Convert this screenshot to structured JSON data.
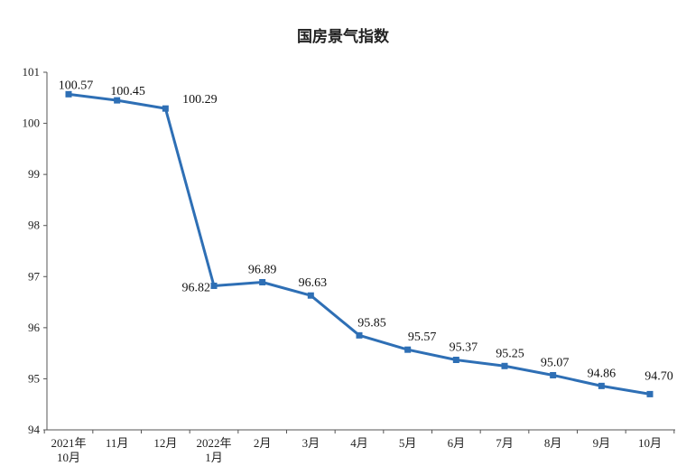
{
  "chart_data": {
    "type": "line",
    "title": "国房景气指数",
    "xlabel": "",
    "ylabel": "",
    "ylim": [
      94,
      101
    ],
    "yticks": [
      "94",
      "95",
      "96",
      "97",
      "98",
      "99",
      "100",
      "101"
    ],
    "categories": [
      "2021年10月",
      "11月",
      "12月",
      "2022年1月",
      "2月",
      "3月",
      "4月",
      "5月",
      "6月",
      "7月",
      "8月",
      "9月",
      "10月"
    ],
    "category_labels": [
      [
        "2021年",
        "10月"
      ],
      [
        "11月"
      ],
      [
        "12月"
      ],
      [
        "2022年",
        "1月"
      ],
      [
        "2月"
      ],
      [
        "3月"
      ],
      [
        "4月"
      ],
      [
        "5月"
      ],
      [
        "6月"
      ],
      [
        "7月"
      ],
      [
        "8月"
      ],
      [
        "9月"
      ],
      [
        "10月"
      ]
    ],
    "series": [
      {
        "values": [
          100.57,
          100.45,
          100.29,
          96.82,
          96.89,
          96.63,
          95.85,
          95.57,
          95.37,
          95.25,
          95.07,
          94.86,
          94.7
        ],
        "labels": [
          "100.57",
          "100.45",
          "100.29",
          "96.82",
          "96.89",
          "96.63",
          "95.85",
          "95.57",
          "95.37",
          "95.25",
          "95.07",
          "94.86",
          "94.70"
        ],
        "color": "#2e6fb5"
      }
    ],
    "grid": false,
    "legend": "none"
  }
}
